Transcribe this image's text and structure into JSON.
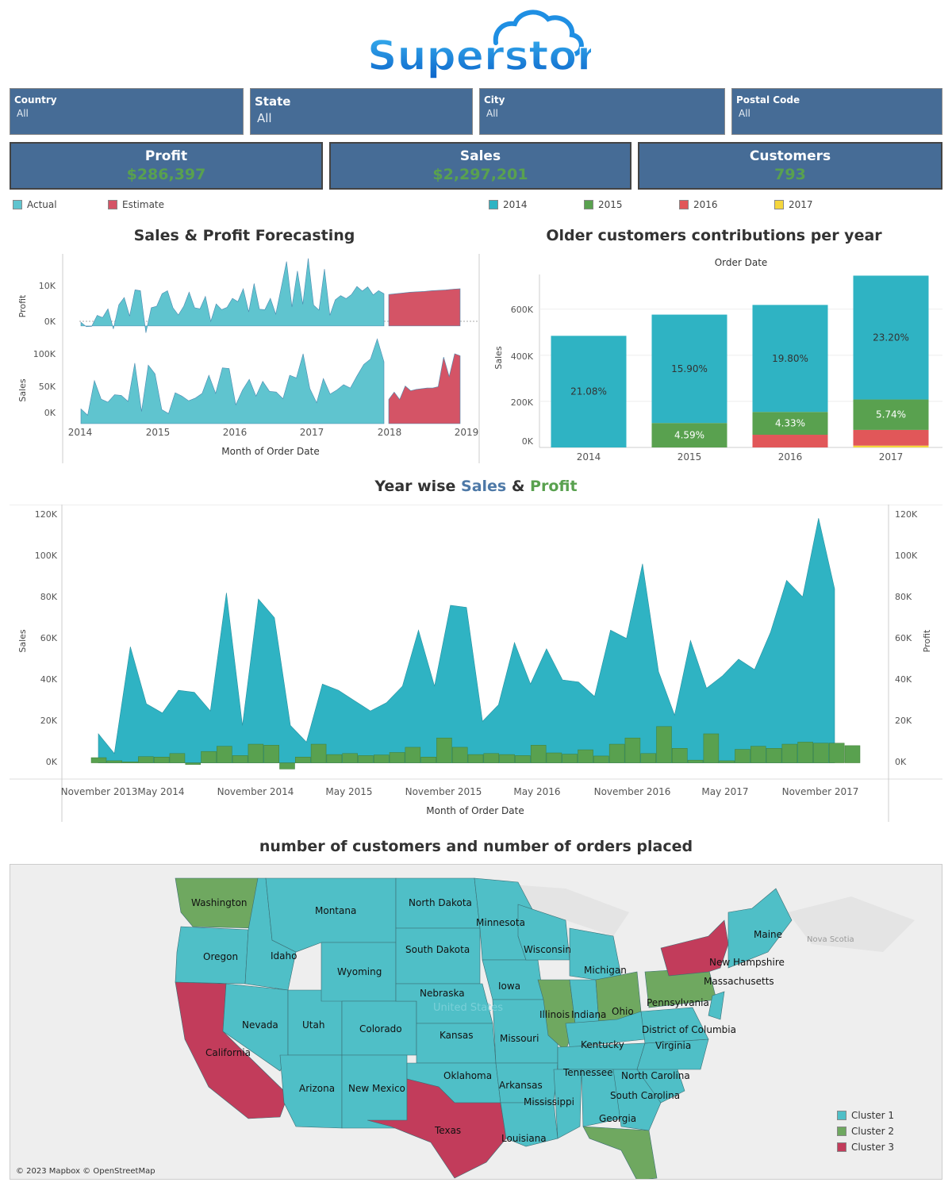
{
  "brand": {
    "logo_text": "Superstore"
  },
  "filters": [
    {
      "label": "Country",
      "value": "All"
    },
    {
      "label": "State",
      "value": "All"
    },
    {
      "label": "City",
      "value": "All"
    },
    {
      "label": "Postal Code",
      "value": "All"
    }
  ],
  "kpis": {
    "profit": {
      "label": "Profit",
      "value": "$286,397"
    },
    "sales": {
      "label": "Sales",
      "value": "$2,297,201"
    },
    "customers": {
      "label": "Customers",
      "value": "793"
    }
  },
  "legend_forecast": [
    {
      "label": "Actual",
      "color": "#5fc4cf"
    },
    {
      "label": "Estimate",
      "color": "#d45466"
    }
  ],
  "legend_years": [
    {
      "label": "2014",
      "color": "#2fb3c3"
    },
    {
      "label": "2015",
      "color": "#59a14f"
    },
    {
      "label": "2016",
      "color": "#e15759"
    },
    {
      "label": "2017",
      "color": "#f5d63d"
    }
  ],
  "colors": {
    "actual": "#5fc4cf",
    "estimate": "#d45466",
    "sales": "#2fb3c3",
    "profit": "#59a14f",
    "cluster1": "#4fbfc7",
    "cluster2": "#6fa860",
    "cluster3": "#c23c5b"
  },
  "titles": {
    "forecast": "Sales & Profit Forecasting",
    "older": "Older customers contributions per year",
    "yearwise_prefix": "Year wise ",
    "yearwise_sales": "Sales",
    "yearwise_amp": " & ",
    "yearwise_profit": "Profit",
    "map": "number of customers and number of orders placed"
  },
  "chart_data": [
    {
      "id": "forecast",
      "type": "area",
      "xlabel": "Month of Order Date",
      "x_ticks": [
        "2014",
        "2015",
        "2016",
        "2017",
        "2018",
        "2019"
      ],
      "profit": {
        "ylabel": "Profit",
        "y_ticks": [
          "10K",
          "0K"
        ],
        "ylim": [
          -4000,
          19000
        ],
        "actual": [
          1000,
          -200,
          -100,
          2800,
          2200,
          4500,
          -800,
          5600,
          7500,
          2600,
          9500,
          9300,
          -1800,
          4800,
          5200,
          8500,
          9300,
          4800,
          2900,
          5200,
          8900,
          4800,
          4500,
          7800,
          1200,
          5800,
          4300,
          4900,
          7300,
          6400,
          9800,
          3700,
          11200,
          4400,
          4300,
          7300,
          3100,
          10000,
          17000,
          5000,
          14500,
          5700,
          17800,
          5500,
          4200,
          15000,
          2800,
          6900,
          8000,
          7200,
          8300,
          10400,
          9200,
          10300,
          8200,
          9300,
          8500
        ],
        "estimate": [
          8300,
          8500,
          8700,
          8900,
          9000,
          9100,
          9300,
          9400,
          9500,
          9700,
          9800
        ]
      },
      "sales": {
        "ylabel": "Sales",
        "y_ticks": [
          "100K",
          "50K",
          "0K"
        ],
        "ylim": [
          -8000,
          110000
        ],
        "actual": [
          14000,
          4500,
          56000,
          28500,
          24000,
          35000,
          34000,
          25000,
          82000,
          10000,
          79000,
          66000,
          13000,
          7000,
          38000,
          33000,
          26000,
          30000,
          37000,
          64000,
          37000,
          75000,
          74000,
          20000,
          42000,
          58000,
          33000,
          55000,
          40000,
          39000,
          29000,
          64000,
          60000,
          96000,
          44000,
          23000,
          59000,
          36000,
          42000,
          50000,
          45000,
          63000,
          80000,
          88000,
          118000,
          84000
        ],
        "estimate": [
          28000,
          39000,
          28000,
          48000,
          41000,
          43000,
          44000,
          45000,
          45000,
          47000,
          91000,
          62000,
          96000,
          93000
        ]
      }
    },
    {
      "id": "older_customers",
      "type": "bar",
      "title": "Older customers contributions per year",
      "xlabel_top": "Order Date",
      "ylabel": "Sales",
      "categories": [
        "2014",
        "2015",
        "2016",
        "2017"
      ],
      "y_ticks": [
        "600K",
        "400K",
        "200K",
        "0K"
      ],
      "ylim": [
        0,
        750000
      ],
      "series": [
        {
          "name": "2014",
          "values": [
            484000,
            470000,
            464000,
            537000
          ],
          "labels": [
            "21.08%",
            "15.90%",
            "19.80%",
            "23.20%"
          ]
        },
        {
          "name": "2015",
          "values": [
            0,
            106000,
            99000,
            132000
          ],
          "labels": [
            "",
            "4.59%",
            "4.33%",
            "5.74%"
          ]
        },
        {
          "name": "2016",
          "values": [
            0,
            0,
            55000,
            68000
          ],
          "labels": [
            "",
            "",
            "",
            ""
          ]
        },
        {
          "name": "2017",
          "values": [
            0,
            0,
            0,
            8000
          ],
          "labels": [
            "",
            "",
            "",
            ""
          ]
        }
      ]
    },
    {
      "id": "yearwise",
      "type": "area",
      "xlabel": "Month of Order Date",
      "ylabel_left": "Sales",
      "ylabel_right": "Profit",
      "x_ticks": [
        "November 2013",
        "May 2014",
        "November 2014",
        "May 2015",
        "November 2015",
        "May 2016",
        "November 2016",
        "May 2017",
        "November 2017"
      ],
      "y_ticks": [
        "120K",
        "100K",
        "80K",
        "60K",
        "40K",
        "20K",
        "0K"
      ],
      "ylim": [
        -4000,
        120000
      ],
      "sales": [
        14000,
        4500,
        56000,
        28500,
        24000,
        35000,
        34000,
        25000,
        82000,
        18000,
        79000,
        70000,
        18000,
        10000,
        38000,
        35000,
        30000,
        25000,
        29000,
        37000,
        64000,
        37000,
        76000,
        75000,
        20000,
        28000,
        58000,
        38000,
        55000,
        40000,
        39000,
        32000,
        64000,
        60000,
        96000,
        44000,
        23000,
        59000,
        36000,
        42000,
        50000,
        45000,
        63000,
        88000,
        80000,
        118000,
        84000
      ],
      "profit": [
        2500,
        1000,
        500,
        3000,
        2800,
        4500,
        -800,
        5500,
        8000,
        3500,
        9000,
        8500,
        -3000,
        2800,
        9000,
        4000,
        4500,
        3500,
        3800,
        5000,
        7500,
        2800,
        12000,
        7500,
        4000,
        4500,
        4000,
        3500,
        8500,
        4800,
        4200,
        6300,
        3300,
        9000,
        12000,
        4500,
        17500,
        7000,
        1300,
        14000,
        1000,
        6500,
        8000,
        7000,
        9000,
        10000,
        9500,
        9500,
        8300
      ]
    }
  ],
  "map": {
    "states": [
      "Washington",
      "Montana",
      "North Dakota",
      "Minnesota",
      "Oregon",
      "Idaho",
      "South Dakota",
      "Wisconsin",
      "Maine",
      "Nova Scotia",
      "Wyoming",
      "Michigan",
      "New Hampshire",
      "Massachusetts",
      "Nebraska",
      "Iowa",
      "Illinois",
      "Indiana",
      "Ohio",
      "Pennsylvania",
      "United States",
      "Nevada",
      "Utah",
      "Colorado",
      "Kansas",
      "Missouri",
      "Kentucky",
      "District of Columbia",
      "Virginia",
      "California",
      "Oklahoma",
      "Tennessee",
      "North Carolina",
      "Arizona",
      "New Mexico",
      "Arkansas",
      "South Carolina",
      "Mississippi",
      "Georgia",
      "Texas",
      "Louisiana"
    ],
    "legend": [
      "Cluster 1",
      "Cluster 2",
      "Cluster 3"
    ],
    "attribution": "© 2023 Mapbox © OpenStreetMap"
  }
}
